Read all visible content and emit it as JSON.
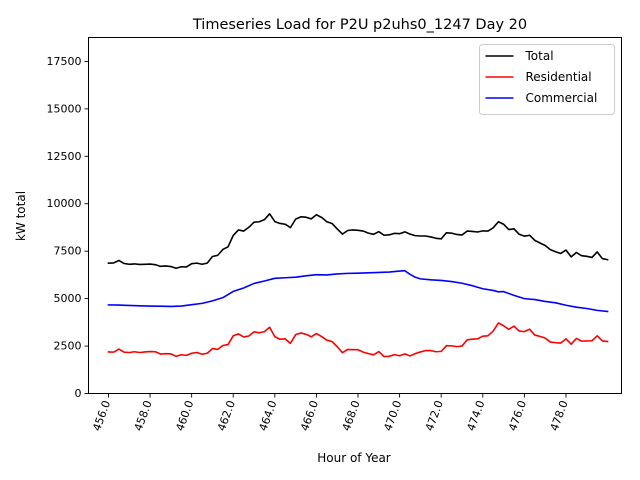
{
  "chart_data": {
    "type": "line",
    "title": "Timeseries Load for P2U p2uhs0_1247  Day 20",
    "xlabel": "Hour of Year",
    "ylabel": "kW total",
    "xlim": [
      455.04,
      480.67
    ],
    "ylim": [
      0,
      18760
    ],
    "x_ticks": [
      456.0,
      458.0,
      460.0,
      462.0,
      464.0,
      466.0,
      468.0,
      470.0,
      472.0,
      474.0,
      476.0,
      478.0
    ],
    "x_tick_labels": [
      "456.0",
      "458.0",
      "460.0",
      "462.0",
      "464.0",
      "466.0",
      "468.0",
      "470.0",
      "472.0",
      "474.0",
      "476.0",
      "478.0"
    ],
    "y_ticks": [
      0,
      2500,
      5000,
      7500,
      10000,
      12500,
      15000,
      17500
    ],
    "y_tick_labels": [
      "0",
      "2500",
      "5000",
      "7500",
      "10000",
      "12500",
      "15000",
      "17500"
    ],
    "legend_position": "top-right",
    "series": [
      {
        "name": "Total",
        "color": "#000000",
        "points": [
          [
            456.0,
            6870
          ],
          [
            456.25,
            6880
          ],
          [
            456.5,
            7010
          ],
          [
            456.75,
            6850
          ],
          [
            457.0,
            6810
          ],
          [
            457.25,
            6830
          ],
          [
            457.5,
            6800
          ],
          [
            457.75,
            6810
          ],
          [
            458.0,
            6820
          ],
          [
            458.25,
            6790
          ],
          [
            458.5,
            6700
          ],
          [
            458.75,
            6720
          ],
          [
            459.0,
            6690
          ],
          [
            459.25,
            6600
          ],
          [
            459.5,
            6680
          ],
          [
            459.75,
            6670
          ],
          [
            460.0,
            6840
          ],
          [
            460.25,
            6870
          ],
          [
            460.5,
            6810
          ],
          [
            460.75,
            6870
          ],
          [
            461.0,
            7220
          ],
          [
            461.25,
            7280
          ],
          [
            461.5,
            7590
          ],
          [
            461.75,
            7730
          ],
          [
            462.0,
            8330
          ],
          [
            462.25,
            8620
          ],
          [
            462.5,
            8560
          ],
          [
            462.75,
            8760
          ],
          [
            463.0,
            9030
          ],
          [
            463.25,
            9050
          ],
          [
            463.5,
            9160
          ],
          [
            463.75,
            9470
          ],
          [
            464.0,
            9060
          ],
          [
            464.25,
            8960
          ],
          [
            464.5,
            8920
          ],
          [
            464.75,
            8740
          ],
          [
            465.0,
            9190
          ],
          [
            465.25,
            9310
          ],
          [
            465.5,
            9290
          ],
          [
            465.75,
            9200
          ],
          [
            466.0,
            9420
          ],
          [
            466.25,
            9280
          ],
          [
            466.5,
            9050
          ],
          [
            466.75,
            8960
          ],
          [
            467.0,
            8670
          ],
          [
            467.25,
            8400
          ],
          [
            467.5,
            8590
          ],
          [
            467.75,
            8620
          ],
          [
            468.0,
            8600
          ],
          [
            468.25,
            8560
          ],
          [
            468.5,
            8450
          ],
          [
            468.75,
            8390
          ],
          [
            469.0,
            8530
          ],
          [
            469.25,
            8340
          ],
          [
            469.5,
            8360
          ],
          [
            469.75,
            8440
          ],
          [
            470.0,
            8420
          ],
          [
            470.25,
            8520
          ],
          [
            470.5,
            8400
          ],
          [
            470.75,
            8320
          ],
          [
            471.0,
            8300
          ],
          [
            471.25,
            8300
          ],
          [
            471.5,
            8250
          ],
          [
            471.75,
            8180
          ],
          [
            472.0,
            8150
          ],
          [
            472.25,
            8470
          ],
          [
            472.5,
            8450
          ],
          [
            472.75,
            8380
          ],
          [
            473.0,
            8350
          ],
          [
            473.25,
            8560
          ],
          [
            473.5,
            8540
          ],
          [
            473.75,
            8510
          ],
          [
            474.0,
            8570
          ],
          [
            474.25,
            8560
          ],
          [
            474.5,
            8730
          ],
          [
            474.75,
            9050
          ],
          [
            475.0,
            8920
          ],
          [
            475.25,
            8640
          ],
          [
            475.5,
            8680
          ],
          [
            475.75,
            8390
          ],
          [
            476.0,
            8290
          ],
          [
            476.25,
            8340
          ],
          [
            476.5,
            8070
          ],
          [
            476.75,
            7930
          ],
          [
            477.0,
            7800
          ],
          [
            477.25,
            7580
          ],
          [
            477.5,
            7470
          ],
          [
            477.75,
            7380
          ],
          [
            478.0,
            7560
          ],
          [
            478.25,
            7200
          ],
          [
            478.5,
            7430
          ],
          [
            478.75,
            7260
          ],
          [
            479.0,
            7230
          ],
          [
            479.25,
            7170
          ],
          [
            479.5,
            7460
          ],
          [
            479.75,
            7110
          ],
          [
            480.0,
            7050
          ]
        ]
      },
      {
        "name": "Residential",
        "color": "#ff0000",
        "points": [
          [
            456.0,
            2190
          ],
          [
            456.25,
            2180
          ],
          [
            456.5,
            2340
          ],
          [
            456.75,
            2180
          ],
          [
            457.0,
            2160
          ],
          [
            457.25,
            2200
          ],
          [
            457.5,
            2160
          ],
          [
            457.75,
            2190
          ],
          [
            458.0,
            2210
          ],
          [
            458.25,
            2200
          ],
          [
            458.5,
            2080
          ],
          [
            458.75,
            2100
          ],
          [
            459.0,
            2090
          ],
          [
            459.25,
            1960
          ],
          [
            459.5,
            2040
          ],
          [
            459.75,
            2010
          ],
          [
            460.0,
            2120
          ],
          [
            460.25,
            2160
          ],
          [
            460.5,
            2070
          ],
          [
            460.75,
            2120
          ],
          [
            461.0,
            2370
          ],
          [
            461.25,
            2320
          ],
          [
            461.5,
            2530
          ],
          [
            461.75,
            2580
          ],
          [
            462.0,
            3040
          ],
          [
            462.25,
            3140
          ],
          [
            462.5,
            2980
          ],
          [
            462.75,
            3030
          ],
          [
            463.0,
            3250
          ],
          [
            463.25,
            3200
          ],
          [
            463.5,
            3260
          ],
          [
            463.75,
            3490
          ],
          [
            464.0,
            2990
          ],
          [
            464.25,
            2860
          ],
          [
            464.5,
            2880
          ],
          [
            464.75,
            2640
          ],
          [
            465.0,
            3100
          ],
          [
            465.25,
            3190
          ],
          [
            465.5,
            3120
          ],
          [
            465.75,
            2990
          ],
          [
            466.0,
            3160
          ],
          [
            466.25,
            3000
          ],
          [
            466.5,
            2810
          ],
          [
            466.75,
            2740
          ],
          [
            467.0,
            2470
          ],
          [
            467.25,
            2150
          ],
          [
            467.5,
            2320
          ],
          [
            467.75,
            2310
          ],
          [
            468.0,
            2310
          ],
          [
            468.25,
            2180
          ],
          [
            468.5,
            2100
          ],
          [
            468.75,
            2040
          ],
          [
            469.0,
            2210
          ],
          [
            469.25,
            1950
          ],
          [
            469.5,
            1960
          ],
          [
            469.75,
            2050
          ],
          [
            470.0,
            1990
          ],
          [
            470.25,
            2090
          ],
          [
            470.5,
            1980
          ],
          [
            470.75,
            2100
          ],
          [
            471.0,
            2190
          ],
          [
            471.25,
            2260
          ],
          [
            471.5,
            2260
          ],
          [
            471.75,
            2200
          ],
          [
            472.0,
            2220
          ],
          [
            472.25,
            2520
          ],
          [
            472.5,
            2510
          ],
          [
            472.75,
            2470
          ],
          [
            473.0,
            2500
          ],
          [
            473.25,
            2830
          ],
          [
            473.5,
            2860
          ],
          [
            473.75,
            2880
          ],
          [
            474.0,
            3020
          ],
          [
            474.25,
            3040
          ],
          [
            474.5,
            3290
          ],
          [
            474.75,
            3720
          ],
          [
            475.0,
            3570
          ],
          [
            475.25,
            3380
          ],
          [
            475.5,
            3550
          ],
          [
            475.75,
            3290
          ],
          [
            476.0,
            3260
          ],
          [
            476.25,
            3390
          ],
          [
            476.5,
            3080
          ],
          [
            476.75,
            3010
          ],
          [
            477.0,
            2920
          ],
          [
            477.25,
            2710
          ],
          [
            477.5,
            2680
          ],
          [
            477.75,
            2660
          ],
          [
            478.0,
            2880
          ],
          [
            478.25,
            2600
          ],
          [
            478.5,
            2900
          ],
          [
            478.75,
            2760
          ],
          [
            479.0,
            2770
          ],
          [
            479.25,
            2780
          ],
          [
            479.5,
            3040
          ],
          [
            479.75,
            2770
          ],
          [
            480.0,
            2740
          ]
        ]
      },
      {
        "name": "Commercial",
        "color": "#0000ff",
        "points": [
          [
            456.0,
            4670
          ],
          [
            456.5,
            4660
          ],
          [
            457.0,
            4640
          ],
          [
            457.5,
            4620
          ],
          [
            458.0,
            4610
          ],
          [
            458.5,
            4600
          ],
          [
            459.0,
            4590
          ],
          [
            459.5,
            4610
          ],
          [
            460.0,
            4680
          ],
          [
            460.5,
            4750
          ],
          [
            461.0,
            4880
          ],
          [
            461.5,
            5050
          ],
          [
            462.0,
            5380
          ],
          [
            462.5,
            5560
          ],
          [
            463.0,
            5800
          ],
          [
            463.5,
            5930
          ],
          [
            464.0,
            6070
          ],
          [
            464.5,
            6100
          ],
          [
            465.0,
            6130
          ],
          [
            465.5,
            6200
          ],
          [
            466.0,
            6260
          ],
          [
            466.5,
            6250
          ],
          [
            467.0,
            6300
          ],
          [
            467.5,
            6330
          ],
          [
            468.0,
            6340
          ],
          [
            468.5,
            6360
          ],
          [
            469.0,
            6380
          ],
          [
            469.5,
            6400
          ],
          [
            470.0,
            6450
          ],
          [
            470.25,
            6470
          ],
          [
            470.5,
            6280
          ],
          [
            470.75,
            6130
          ],
          [
            471.0,
            6040
          ],
          [
            471.5,
            5990
          ],
          [
            472.0,
            5960
          ],
          [
            472.5,
            5900
          ],
          [
            473.0,
            5810
          ],
          [
            473.5,
            5680
          ],
          [
            474.0,
            5520
          ],
          [
            474.5,
            5430
          ],
          [
            474.75,
            5360
          ],
          [
            475.0,
            5370
          ],
          [
            475.5,
            5170
          ],
          [
            476.0,
            5000
          ],
          [
            476.5,
            4950
          ],
          [
            477.0,
            4850
          ],
          [
            477.5,
            4780
          ],
          [
            478.0,
            4650
          ],
          [
            478.5,
            4550
          ],
          [
            479.0,
            4480
          ],
          [
            479.5,
            4380
          ],
          [
            480.0,
            4320
          ]
        ]
      }
    ]
  }
}
